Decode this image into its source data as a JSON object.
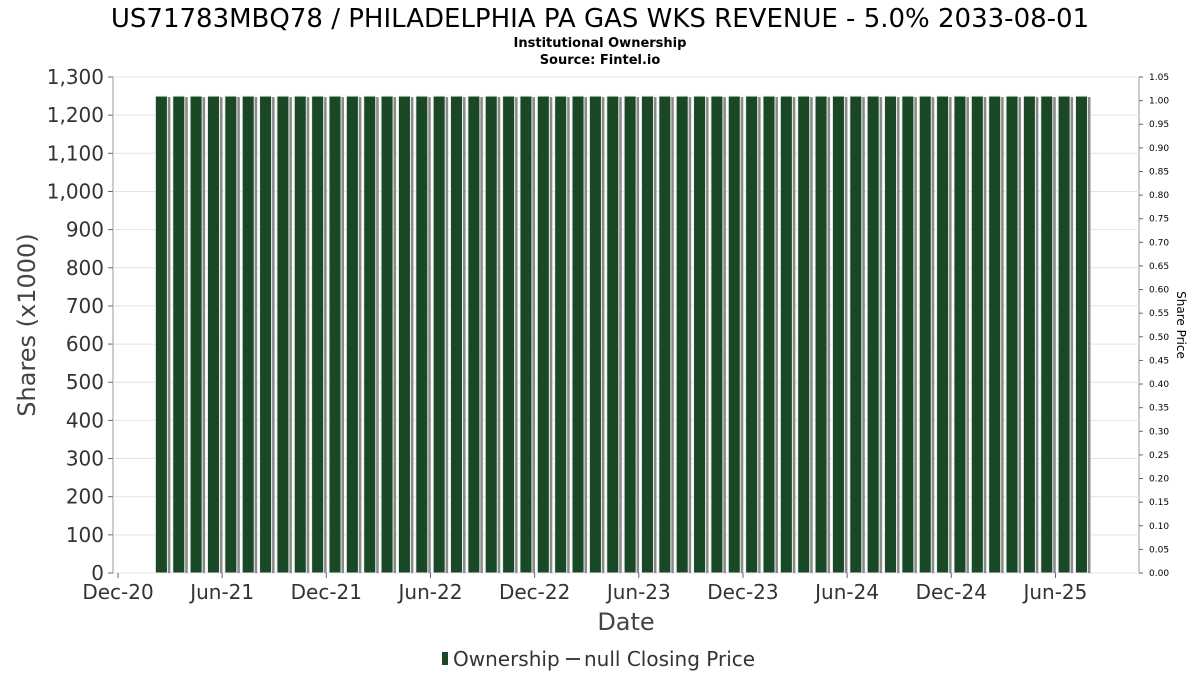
{
  "chart_data": {
    "type": "bar",
    "title": "US71783MBQ78 / PHILADELPHIA PA GAS WKS REVENUE - 5.0% 2033-08-01",
    "subtitle": "Institutional Ownership",
    "source": "Source: Fintel.io",
    "xlabel": "Date",
    "ylabel": "Shares (x1000)",
    "ylabel_right": "Share Price",
    "x_ticks": [
      "Dec-20",
      "Jun-21",
      "Dec-21",
      "Jun-22",
      "Dec-22",
      "Jun-23",
      "Dec-23",
      "Jun-24",
      "Dec-24",
      "Jun-25"
    ],
    "y_ticks": [
      "0",
      "100",
      "200",
      "300",
      "400",
      "500",
      "600",
      "700",
      "800",
      "900",
      "1,000",
      "1,100",
      "1,200",
      "1,300"
    ],
    "y2_ticks": [
      "0.00",
      "0.05",
      "0.10",
      "0.15",
      "0.20",
      "0.25",
      "0.30",
      "0.35",
      "0.40",
      "0.45",
      "0.50",
      "0.55",
      "0.60",
      "0.65",
      "0.70",
      "0.75",
      "0.80",
      "0.85",
      "0.90",
      "0.95",
      "1.00",
      "1.05"
    ],
    "ylim": [
      0,
      1300
    ],
    "y2lim": [
      0,
      1.05
    ],
    "x_start": "2020-12",
    "series": [
      {
        "name": "Ownership",
        "color": "#1a4726",
        "values": [
          1250,
          1250,
          1250,
          1250,
          1250,
          1250,
          1250,
          1250,
          1250,
          1250,
          1250,
          1250,
          1250,
          1250,
          1250,
          1250,
          1250,
          1250,
          1250,
          1250,
          1250,
          1250,
          1250,
          1250,
          1250,
          1250,
          1250,
          1250,
          1250,
          1250,
          1250,
          1250,
          1250,
          1250,
          1250,
          1250,
          1250,
          1250,
          1250,
          1250,
          1250,
          1250,
          1250,
          1250,
          1250,
          1250,
          1250,
          1250,
          1250,
          1250,
          1250,
          1250,
          1250,
          1250
        ]
      },
      {
        "name": "null Closing Price",
        "color": "#444444",
        "values": []
      }
    ],
    "grid": true,
    "legend_position": "bottom-center"
  }
}
